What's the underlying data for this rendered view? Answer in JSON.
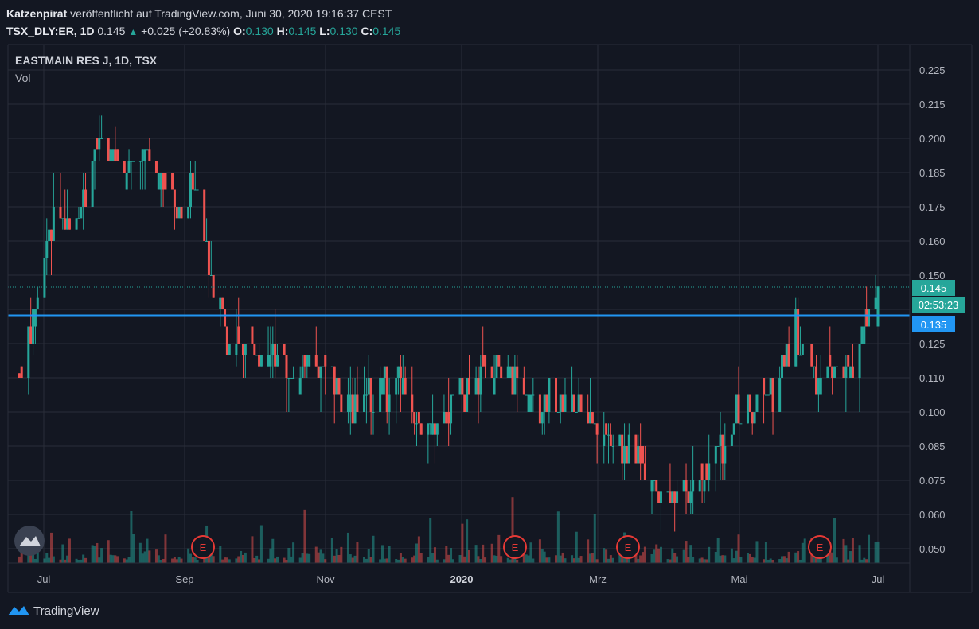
{
  "header": {
    "author": "Katzenpirat",
    "published_text": "veröffentlicht auf TradingView.com, Juni 30, 2020 19:16:37 CEST"
  },
  "quote": {
    "symbol_label": "TSX_DLY:ER, 1D",
    "last": "0.145",
    "change": "+0.025 (+20.83%)",
    "open_label": "O:",
    "open": "0.130",
    "high_label": "H:",
    "high": "0.145",
    "low_label": "L:",
    "low": "0.130",
    "close_label": "C:",
    "close": "0.145"
  },
  "chart_legend": {
    "title": "EASTMAIN RES J, 1D, TSX",
    "indicator": "Vol"
  },
  "colors": {
    "background": "#131722",
    "grid": "#2a2e39",
    "up": "#26a69a",
    "down": "#ef5350",
    "level_line": "#2196f3",
    "earnings": "#e53935"
  },
  "icons": [
    "tradingview-logo-icon",
    "up-triangle-icon",
    "earnings-marker-icon"
  ],
  "price_scale": {
    "ticks": [
      "0.225",
      "0.215",
      "0.200",
      "0.185",
      "0.175",
      "0.160",
      "0.150",
      "0.135",
      "0.125",
      "0.110",
      "0.100",
      "0.085",
      "0.075",
      "0.060",
      "0.050"
    ],
    "last_price_label": "0.145",
    "countdown_label": "02:53:23",
    "level_label": "0.135"
  },
  "time_axis": {
    "labels": [
      "Jul",
      "Sep",
      "Nov",
      "2020",
      "Mrz",
      "Mai",
      "Jul"
    ]
  },
  "earnings_markers": [
    "E",
    "E",
    "E",
    "E"
  ],
  "footer": {
    "brand": "TradingView"
  },
  "chart_data": {
    "type": "candlestick",
    "title": "EASTMAIN RES J, 1D, TSX",
    "x_range": [
      "2019-06",
      "2020-06-30"
    ],
    "ylim": [
      0.045,
      0.23
    ],
    "horizontal_level": 0.135,
    "last_price": 0.145,
    "grid": true,
    "volume_panel": true,
    "approx_close_path": [
      {
        "date": "2019-06-20",
        "close": 0.112
      },
      {
        "date": "2019-06-27",
        "close": 0.14
      },
      {
        "date": "2019-07-05",
        "close": 0.17
      },
      {
        "date": "2019-07-15",
        "close": 0.17
      },
      {
        "date": "2019-07-25",
        "close": 0.2
      },
      {
        "date": "2019-08-05",
        "close": 0.185
      },
      {
        "date": "2019-08-15",
        "close": 0.195
      },
      {
        "date": "2019-08-25",
        "close": 0.175
      },
      {
        "date": "2019-09-05",
        "close": 0.18
      },
      {
        "date": "2019-09-12",
        "close": 0.145
      },
      {
        "date": "2019-09-20",
        "close": 0.125
      },
      {
        "date": "2019-10-01",
        "close": 0.122
      },
      {
        "date": "2019-10-15",
        "close": 0.115
      },
      {
        "date": "2019-11-01",
        "close": 0.112
      },
      {
        "date": "2019-11-15",
        "close": 0.1
      },
      {
        "date": "2019-12-01",
        "close": 0.11
      },
      {
        "date": "2019-12-15",
        "close": 0.092
      },
      {
        "date": "2020-01-01",
        "close": 0.105
      },
      {
        "date": "2020-01-15",
        "close": 0.115
      },
      {
        "date": "2020-02-01",
        "close": 0.103
      },
      {
        "date": "2020-02-15",
        "close": 0.105
      },
      {
        "date": "2020-03-01",
        "close": 0.095
      },
      {
        "date": "2020-03-15",
        "close": 0.082
      },
      {
        "date": "2020-04-01",
        "close": 0.066
      },
      {
        "date": "2020-04-15",
        "close": 0.075
      },
      {
        "date": "2020-05-01",
        "close": 0.1
      },
      {
        "date": "2020-05-15",
        "close": 0.105
      },
      {
        "date": "2020-05-25",
        "close": 0.128
      },
      {
        "date": "2020-06-05",
        "close": 0.108
      },
      {
        "date": "2020-06-20",
        "close": 0.115
      },
      {
        "date": "2020-06-30",
        "close": 0.145
      }
    ]
  }
}
